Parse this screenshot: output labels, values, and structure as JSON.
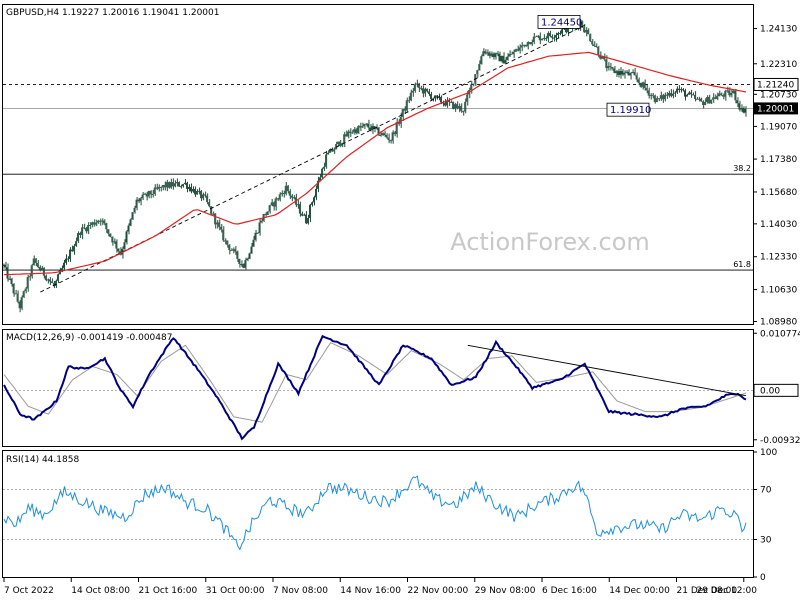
{
  "chart_data": [
    {
      "type": "candlestick",
      "title": "GBPUSD,H4  1.19227 1.20016 1.19041 1.20001",
      "ylim": [
        1.0885,
        1.2535
      ],
      "yticks": [
        "1.24130",
        "1.22310",
        "1.20730",
        "1.19070",
        "1.17380",
        "1.15680",
        "1.14030",
        "1.12330",
        "1.10630",
        "1.08980"
      ],
      "price_tags": [
        {
          "value": 1.2124,
          "label": "1.21240",
          "style": "boxed"
        },
        {
          "value": 1.20001,
          "label": "1.20001",
          "style": "filled"
        }
      ],
      "fib_levels": [
        {
          "label": "38.2",
          "value": 1.166
        },
        {
          "label": "61.8",
          "value": 1.1164
        }
      ],
      "annotations": [
        {
          "label": "1.24450",
          "value": 1.2445
        },
        {
          "label": "1.19910",
          "value": 1.1991
        }
      ],
      "dashed_levels": [
        1.2124
      ],
      "current_level": 1.20001,
      "watermark": "ActionForex.com",
      "ohlc_keypoints": [
        [
          0,
          1.1185
        ],
        [
          8,
          1.0975
        ],
        [
          15,
          1.121
        ],
        [
          25,
          1.108
        ],
        [
          38,
          1.1365
        ],
        [
          48,
          1.143
        ],
        [
          58,
          1.125
        ],
        [
          66,
          1.152
        ],
        [
          80,
          1.16
        ],
        [
          90,
          1.161
        ],
        [
          100,
          1.153
        ],
        [
          110,
          1.131
        ],
        [
          119,
          1.1185
        ],
        [
          128,
          1.143
        ],
        [
          140,
          1.159
        ],
        [
          150,
          1.142
        ],
        [
          160,
          1.175
        ],
        [
          172,
          1.188
        ],
        [
          180,
          1.191
        ],
        [
          192,
          1.184
        ],
        [
          204,
          1.212
        ],
        [
          214,
          1.205
        ],
        [
          228,
          1.1995
        ],
        [
          238,
          1.23
        ],
        [
          248,
          1.225
        ],
        [
          262,
          1.236
        ],
        [
          272,
          1.238
        ],
        [
          286,
          1.2445
        ],
        [
          293,
          1.233
        ],
        [
          300,
          1.22
        ],
        [
          312,
          1.217
        ],
        [
          324,
          1.204
        ],
        [
          334,
          1.21
        ],
        [
          346,
          1.203
        ],
        [
          356,
          1.207
        ],
        [
          362,
          1.208
        ],
        [
          366,
          1.199
        ],
        [
          368,
          1.2
        ]
      ],
      "ma_keypoints": [
        [
          0,
          1.114
        ],
        [
          25,
          1.115
        ],
        [
          50,
          1.121
        ],
        [
          75,
          1.134
        ],
        [
          95,
          1.148
        ],
        [
          115,
          1.14
        ],
        [
          135,
          1.145
        ],
        [
          150,
          1.156
        ],
        [
          170,
          1.175
        ],
        [
          190,
          1.19
        ],
        [
          210,
          1.2
        ],
        [
          230,
          1.208
        ],
        [
          250,
          1.221
        ],
        [
          270,
          1.227
        ],
        [
          290,
          1.229
        ],
        [
          310,
          1.223
        ],
        [
          330,
          1.217
        ],
        [
          350,
          1.212
        ],
        [
          368,
          1.2085
        ]
      ],
      "trendline": {
        "from": [
          18,
          1.105
        ],
        "to": [
          288,
          1.243
        ]
      },
      "bars": 369
    },
    {
      "type": "line",
      "title": "MACD(12,26,9) -0.001419 -0.000487",
      "ylim": [
        -0.0105,
        0.0112
      ],
      "yticks": [
        "0.010774",
        "0.00",
        "-0.009328"
      ],
      "current_tag": "0.00",
      "macd_keypoints": [
        [
          0,
          0.001
        ],
        [
          8,
          -0.0045
        ],
        [
          15,
          -0.0055
        ],
        [
          20,
          -0.004
        ],
        [
          26,
          -0.002
        ],
        [
          32,
          0.0045
        ],
        [
          40,
          0.004
        ],
        [
          50,
          0.006
        ],
        [
          58,
          0.0
        ],
        [
          64,
          -0.003
        ],
        [
          72,
          0.003
        ],
        [
          84,
          0.01
        ],
        [
          96,
          0.004
        ],
        [
          106,
          -0.0015
        ],
        [
          118,
          -0.009
        ],
        [
          124,
          -0.007
        ],
        [
          136,
          0.005
        ],
        [
          146,
          -0.0005
        ],
        [
          158,
          0.0102
        ],
        [
          170,
          0.0085
        ],
        [
          186,
          0.001
        ],
        [
          198,
          0.0085
        ],
        [
          212,
          0.006
        ],
        [
          222,
          0.001
        ],
        [
          234,
          0.0025
        ],
        [
          244,
          0.009
        ],
        [
          254,
          0.0045
        ],
        [
          262,
          0.0005
        ],
        [
          276,
          0.002
        ],
        [
          288,
          0.005
        ],
        [
          300,
          -0.004
        ],
        [
          312,
          -0.0045
        ],
        [
          326,
          -0.005
        ],
        [
          336,
          -0.0035
        ],
        [
          348,
          -0.003
        ],
        [
          358,
          -0.001
        ],
        [
          364,
          -0.0005
        ],
        [
          368,
          -0.0018
        ]
      ],
      "signal_keypoints": [
        [
          0,
          0.003
        ],
        [
          12,
          -0.003
        ],
        [
          22,
          -0.0045
        ],
        [
          34,
          0.002
        ],
        [
          44,
          0.0045
        ],
        [
          56,
          0.003
        ],
        [
          66,
          -0.001
        ],
        [
          78,
          0.0055
        ],
        [
          90,
          0.0085
        ],
        [
          102,
          0.002
        ],
        [
          114,
          -0.005
        ],
        [
          128,
          -0.006
        ],
        [
          140,
          0.003
        ],
        [
          150,
          0.002
        ],
        [
          162,
          0.009
        ],
        [
          176,
          0.0065
        ],
        [
          190,
          0.003
        ],
        [
          202,
          0.0075
        ],
        [
          216,
          0.005
        ],
        [
          228,
          0.002
        ],
        [
          240,
          0.006
        ],
        [
          252,
          0.0065
        ],
        [
          264,
          0.0015
        ],
        [
          280,
          0.0025
        ],
        [
          292,
          0.0035
        ],
        [
          304,
          -0.002
        ],
        [
          318,
          -0.004
        ],
        [
          332,
          -0.004
        ],
        [
          346,
          -0.0032
        ],
        [
          360,
          -0.0015
        ],
        [
          368,
          -0.0005
        ]
      ],
      "trendline": {
        "from": [
          230,
          0.0085
        ],
        "to": [
          368,
          -0.001
        ]
      }
    },
    {
      "type": "line",
      "title": "RSI(14) 44.1858",
      "ylim": [
        0,
        100
      ],
      "yticks": [
        "100",
        "70",
        "30",
        "0"
      ],
      "levels": [
        70,
        30
      ],
      "rsi_keypoints": [
        [
          0,
          48
        ],
        [
          6,
          42
        ],
        [
          12,
          55
        ],
        [
          20,
          50
        ],
        [
          30,
          68
        ],
        [
          40,
          60
        ],
        [
          50,
          52
        ],
        [
          60,
          48
        ],
        [
          70,
          66
        ],
        [
          80,
          72
        ],
        [
          90,
          60
        ],
        [
          100,
          55
        ],
        [
          110,
          38
        ],
        [
          116,
          23
        ],
        [
          124,
          45
        ],
        [
          132,
          62
        ],
        [
          140,
          56
        ],
        [
          150,
          50
        ],
        [
          160,
          72
        ],
        [
          170,
          70
        ],
        [
          180,
          64
        ],
        [
          190,
          60
        ],
        [
          204,
          78
        ],
        [
          214,
          62
        ],
        [
          224,
          58
        ],
        [
          234,
          72
        ],
        [
          244,
          58
        ],
        [
          254,
          48
        ],
        [
          264,
          58
        ],
        [
          274,
          64
        ],
        [
          284,
          74
        ],
        [
          288,
          68
        ],
        [
          294,
          36
        ],
        [
          304,
          40
        ],
        [
          316,
          42
        ],
        [
          326,
          38
        ],
        [
          336,
          50
        ],
        [
          346,
          46
        ],
        [
          356,
          55
        ],
        [
          364,
          48
        ],
        [
          366,
          33
        ],
        [
          368,
          44
        ]
      ]
    }
  ],
  "x_axis": {
    "labels": [
      "7 Oct 2022",
      "14 Oct 08:00",
      "21 Oct 16:00",
      "31 Oct 00:00",
      "7 Nov 08:00",
      "14 Nov 16:00",
      "22 Nov 00:00",
      "29 Nov 08:00",
      "6 Dec 16:00",
      "14 Dec 00:00",
      "21 Dec 08:00",
      "29 Dec 12:00"
    ]
  },
  "colors": {
    "candle": "#1f4c3a",
    "ma": "#e02020",
    "macd": "#000080",
    "signal": "#9a9a9a",
    "rsi": "#1e8fe0",
    "watermark": "#c8c8c8"
  }
}
